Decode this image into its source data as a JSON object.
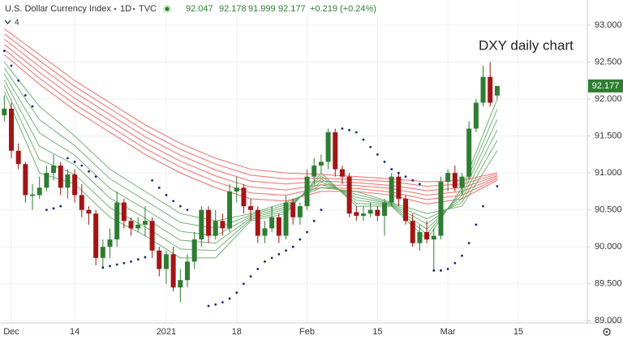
{
  "header": {
    "title": "U.S. Dollar Currency Index",
    "interval": "1D",
    "source": "TVC",
    "quote": [
      "92.047",
      "92.178",
      "91.999",
      "92.177",
      "+0.219 (+0.24%)"
    ],
    "indicators": "4"
  },
  "chart_data": {
    "type": "candlestick",
    "annotation": "DXY daily chart",
    "categories": [
      null,
      "Dec",
      null,
      null,
      null,
      null,
      null,
      null,
      null,
      null,
      "14",
      null,
      null,
      null,
      null,
      null,
      null,
      null,
      null,
      null,
      null,
      null,
      null,
      "2021",
      null,
      null,
      null,
      null,
      null,
      null,
      null,
      null,
      null,
      "18",
      null,
      null,
      null,
      null,
      null,
      null,
      null,
      null,
      null,
      "Feb",
      null,
      null,
      null,
      null,
      null,
      null,
      null,
      null,
      null,
      "15",
      null,
      null,
      null,
      null,
      null,
      null,
      null,
      null,
      null,
      "Mar",
      null,
      null,
      null,
      null,
      null,
      null,
      null,
      null,
      null,
      "15",
      null,
      null,
      null,
      null,
      null,
      null,
      null,
      null,
      null
    ],
    "open": [
      91.78,
      91.87,
      91.3,
      91.12,
      90.69,
      90.7,
      90.8,
      91.0,
      91.1,
      90.8,
      90.98,
      90.7,
      90.5,
      90.45,
      89.85,
      90.0,
      90.1,
      90.6,
      90.35,
      90.25,
      90.3,
      90.35,
      89.95,
      89.7,
      89.9,
      89.45,
      89.55,
      89.8,
      90.1,
      90.5,
      90.15,
      90.35,
      90.25,
      90.75,
      90.8,
      90.55,
      90.5,
      90.15,
      90.25,
      90.4,
      90.15,
      90.6,
      90.4,
      90.55,
      90.95,
      91.1,
      91.15,
      91.55,
      91.05,
      90.95,
      90.47,
      90.42,
      90.45,
      90.5,
      90.42,
      90.6,
      90.95,
      90.65,
      90.35,
      90.05,
      90.2,
      90.1,
      90.15,
      90.88,
      91.0,
      90.8,
      90.95,
      91.6,
      91.95,
      92.3,
      92.047,
      null,
      null,
      null,
      null,
      null,
      null,
      null,
      null,
      null,
      null,
      null,
      null
    ],
    "high": [
      92.05,
      91.95,
      91.4,
      91.15,
      90.85,
      90.95,
      91.1,
      91.25,
      91.15,
      91.05,
      91.05,
      90.85,
      90.55,
      90.5,
      90.1,
      90.25,
      90.75,
      90.65,
      90.4,
      90.4,
      90.55,
      90.4,
      90.0,
      89.95,
      90.0,
      89.7,
      89.9,
      90.2,
      90.55,
      90.55,
      90.5,
      90.45,
      90.85,
      90.95,
      90.85,
      90.65,
      90.55,
      90.35,
      90.55,
      90.45,
      90.7,
      90.65,
      90.6,
      91.05,
      91.2,
      91.25,
      91.6,
      91.6,
      91.1,
      91.0,
      90.55,
      90.55,
      90.6,
      90.55,
      90.65,
      91.0,
      91.0,
      90.7,
      90.45,
      90.3,
      90.35,
      90.25,
      90.95,
      91.05,
      91.1,
      91.0,
      91.7,
      92.0,
      92.45,
      92.5,
      92.178,
      null,
      null,
      null,
      null,
      null,
      null,
      null,
      null,
      null,
      null,
      null,
      null
    ],
    "low": [
      91.7,
      91.2,
      91.05,
      90.6,
      90.5,
      90.65,
      90.75,
      90.9,
      90.7,
      90.65,
      90.6,
      90.4,
      90.3,
      89.75,
      89.7,
      89.85,
      90.0,
      90.25,
      90.15,
      90.2,
      90.15,
      89.85,
      89.6,
      89.5,
      89.4,
      89.25,
      89.45,
      89.7,
      90.0,
      90.05,
      90.1,
      90.15,
      90.2,
      90.6,
      90.45,
      90.35,
      90.05,
      90.05,
      90.2,
      90.05,
      90.1,
      90.3,
      90.3,
      90.5,
      90.85,
      91.0,
      91.05,
      90.95,
      90.85,
      90.4,
      90.35,
      90.35,
      90.4,
      90.35,
      90.15,
      90.55,
      90.55,
      90.3,
      90.0,
      89.95,
      90.05,
      89.68,
      90.1,
      90.75,
      90.75,
      90.7,
      90.9,
      91.55,
      91.9,
      91.9,
      91.999,
      null,
      null,
      null,
      null,
      null,
      null,
      null,
      null,
      null,
      null,
      null,
      null
    ],
    "close": [
      91.87,
      91.3,
      91.12,
      90.7,
      90.71,
      90.8,
      91.0,
      91.1,
      90.8,
      90.98,
      90.7,
      90.5,
      90.45,
      89.85,
      90.0,
      90.1,
      90.6,
      90.35,
      90.25,
      90.3,
      90.35,
      89.95,
      89.7,
      89.9,
      89.45,
      89.55,
      89.8,
      90.1,
      90.5,
      90.15,
      90.35,
      90.25,
      90.75,
      90.8,
      90.55,
      90.5,
      90.15,
      90.25,
      90.4,
      90.15,
      90.6,
      90.4,
      90.55,
      90.95,
      91.1,
      91.15,
      91.55,
      91.05,
      90.95,
      90.45,
      90.42,
      90.45,
      90.5,
      90.42,
      90.6,
      90.95,
      90.65,
      90.35,
      90.05,
      90.2,
      90.1,
      90.15,
      90.88,
      91.0,
      90.8,
      90.95,
      91.6,
      91.95,
      92.3,
      91.95,
      92.177,
      null,
      null,
      null,
      null,
      null,
      null,
      null,
      null,
      null,
      null,
      null,
      null
    ],
    "up_color": "#2e7d32",
    "down_color": "#a31515",
    "sar": [
      92.65,
      92.45,
      92.25,
      92.05,
      91.9,
      null,
      90.5,
      90.52,
      90.55,
      91.2,
      91.15,
      91.1,
      91.02,
      90.95,
      89.72,
      89.74,
      89.76,
      89.78,
      89.8,
      89.83,
      89.86,
      90.9,
      90.8,
      90.7,
      90.62,
      90.55,
      90.5,
      null,
      null,
      89.2,
      89.22,
      89.25,
      89.3,
      89.38,
      89.5,
      89.6,
      89.7,
      89.8,
      89.85,
      89.9,
      89.95,
      90.0,
      90.1,
      90.2,
      90.35,
      90.5,
      null,
      null,
      91.6,
      91.58,
      91.55,
      91.45,
      91.35,
      91.25,
      91.15,
      91.05,
      91.0,
      90.95,
      90.9,
      90.85,
      null,
      89.68,
      89.68,
      89.7,
      89.78,
      89.88,
      90.05,
      90.3,
      90.55,
      null,
      90.82,
      null,
      null,
      null,
      null,
      null,
      null,
      null,
      null,
      null,
      null,
      null,
      null
    ],
    "sar_color": "#1a237e",
    "ribbon": [
      {
        "color": "#ef5350",
        "x": [
          0,
          5,
          10,
          15,
          20,
          25,
          30,
          35,
          40,
          45,
          50,
          55,
          60,
          65,
          70
        ],
        "values": [
          92.95,
          92.6,
          92.25,
          91.95,
          91.65,
          91.4,
          91.2,
          91.05,
          91.0,
          90.98,
          90.95,
          90.92,
          90.88,
          90.9,
          91.0
        ]
      },
      {
        "color": "#ef5350",
        "x": [
          0,
          5,
          10,
          15,
          20,
          25,
          30,
          35,
          40,
          45,
          50,
          55,
          60,
          65,
          70
        ],
        "values": [
          92.88,
          92.52,
          92.17,
          91.87,
          91.57,
          91.32,
          91.12,
          90.97,
          90.92,
          90.93,
          90.91,
          90.88,
          90.82,
          90.85,
          90.98
        ]
      },
      {
        "color": "#ef5350",
        "x": [
          0,
          5,
          10,
          15,
          20,
          25,
          30,
          35,
          40,
          45,
          50,
          55,
          60,
          65,
          70
        ],
        "values": [
          92.81,
          92.44,
          92.09,
          91.79,
          91.49,
          91.24,
          91.04,
          90.89,
          90.85,
          90.89,
          90.87,
          90.83,
          90.76,
          90.8,
          90.96
        ]
      },
      {
        "color": "#ef5350",
        "x": [
          0,
          5,
          10,
          15,
          20,
          25,
          30,
          35,
          40,
          45,
          50,
          55,
          60,
          65,
          70
        ],
        "values": [
          92.74,
          92.36,
          92.01,
          91.71,
          91.41,
          91.16,
          90.96,
          90.81,
          90.77,
          90.84,
          90.83,
          90.79,
          90.7,
          90.75,
          90.94
        ]
      },
      {
        "color": "#ef5350",
        "x": [
          0,
          5,
          10,
          15,
          20,
          25,
          30,
          35,
          40,
          45,
          50,
          55,
          60,
          65,
          70
        ],
        "values": [
          92.67,
          92.28,
          91.93,
          91.63,
          91.33,
          91.08,
          90.88,
          90.73,
          90.7,
          90.8,
          90.79,
          90.74,
          90.64,
          90.7,
          90.92
        ]
      },
      {
        "color": "#ef5350",
        "x": [
          0,
          5,
          10,
          15,
          20,
          25,
          30,
          35,
          40,
          45,
          50,
          55,
          60,
          65,
          70
        ],
        "values": [
          92.6,
          92.2,
          91.85,
          91.55,
          91.25,
          91.0,
          90.8,
          90.65,
          90.62,
          90.75,
          90.75,
          90.7,
          90.58,
          90.65,
          90.9
        ]
      },
      {
        "color": "#5aa55e",
        "x": [
          0,
          5,
          10,
          15,
          20,
          25,
          30,
          35,
          40,
          45,
          50,
          55,
          60,
          65,
          70
        ],
        "values": [
          92.5,
          91.9,
          91.5,
          91.05,
          90.75,
          90.45,
          90.35,
          90.45,
          90.6,
          90.8,
          90.75,
          90.6,
          90.45,
          90.55,
          91.3
        ]
      },
      {
        "color": "#5aa55e",
        "x": [
          0,
          5,
          10,
          15,
          20,
          25,
          30,
          35,
          40,
          45,
          50,
          55,
          60,
          65,
          70
        ],
        "values": [
          92.42,
          91.72,
          91.37,
          90.92,
          90.63,
          90.33,
          90.25,
          90.43,
          90.57,
          90.84,
          90.71,
          90.59,
          90.38,
          90.6,
          91.44
        ]
      },
      {
        "color": "#5aa55e",
        "x": [
          0,
          5,
          10,
          15,
          20,
          25,
          30,
          35,
          40,
          45,
          50,
          55,
          60,
          65,
          70
        ],
        "values": [
          92.34,
          91.54,
          91.24,
          90.79,
          90.51,
          90.21,
          90.15,
          90.41,
          90.54,
          90.88,
          90.67,
          90.58,
          90.31,
          90.65,
          91.58
        ]
      },
      {
        "color": "#5aa55e",
        "x": [
          0,
          5,
          10,
          15,
          20,
          25,
          30,
          35,
          40,
          45,
          50,
          55,
          60,
          65,
          70
        ],
        "values": [
          92.26,
          91.36,
          91.11,
          90.66,
          90.39,
          90.09,
          90.05,
          90.39,
          90.51,
          90.92,
          90.63,
          90.57,
          90.24,
          90.7,
          91.72
        ]
      },
      {
        "color": "#5aa55e",
        "x": [
          0,
          5,
          10,
          15,
          20,
          25,
          30,
          35,
          40,
          45,
          50,
          55,
          60,
          65,
          70
        ],
        "values": [
          92.18,
          91.18,
          90.98,
          90.53,
          90.27,
          89.97,
          89.95,
          90.37,
          90.48,
          90.96,
          90.59,
          90.56,
          90.17,
          90.75,
          91.86
        ]
      },
      {
        "color": "#5aa55e",
        "x": [
          0,
          5,
          10,
          15,
          20,
          25,
          30,
          35,
          40,
          45,
          50,
          55,
          60,
          65,
          70
        ],
        "values": [
          92.1,
          91.0,
          90.85,
          90.4,
          90.15,
          89.85,
          89.85,
          90.35,
          90.45,
          91.0,
          90.55,
          90.55,
          90.1,
          90.8,
          92.0
        ]
      }
    ],
    "last_price": 92.177,
    "ylim": [
      88.97,
      93.34
    ],
    "yticks": [
      {
        "value": 89,
        "label": "89.000"
      },
      {
        "value": 89.5,
        "label": "89.500"
      },
      {
        "value": 90,
        "label": "90.000"
      },
      {
        "value": 90.5,
        "label": "90.500"
      },
      {
        "value": 91,
        "label": "91.000"
      },
      {
        "value": 91.5,
        "label": "91.500"
      },
      {
        "value": 92,
        "label": "92.000"
      },
      {
        "value": 92.5,
        "label": "92.500"
      },
      {
        "value": 93,
        "label": "93.000"
      }
    ],
    "grid": true
  }
}
